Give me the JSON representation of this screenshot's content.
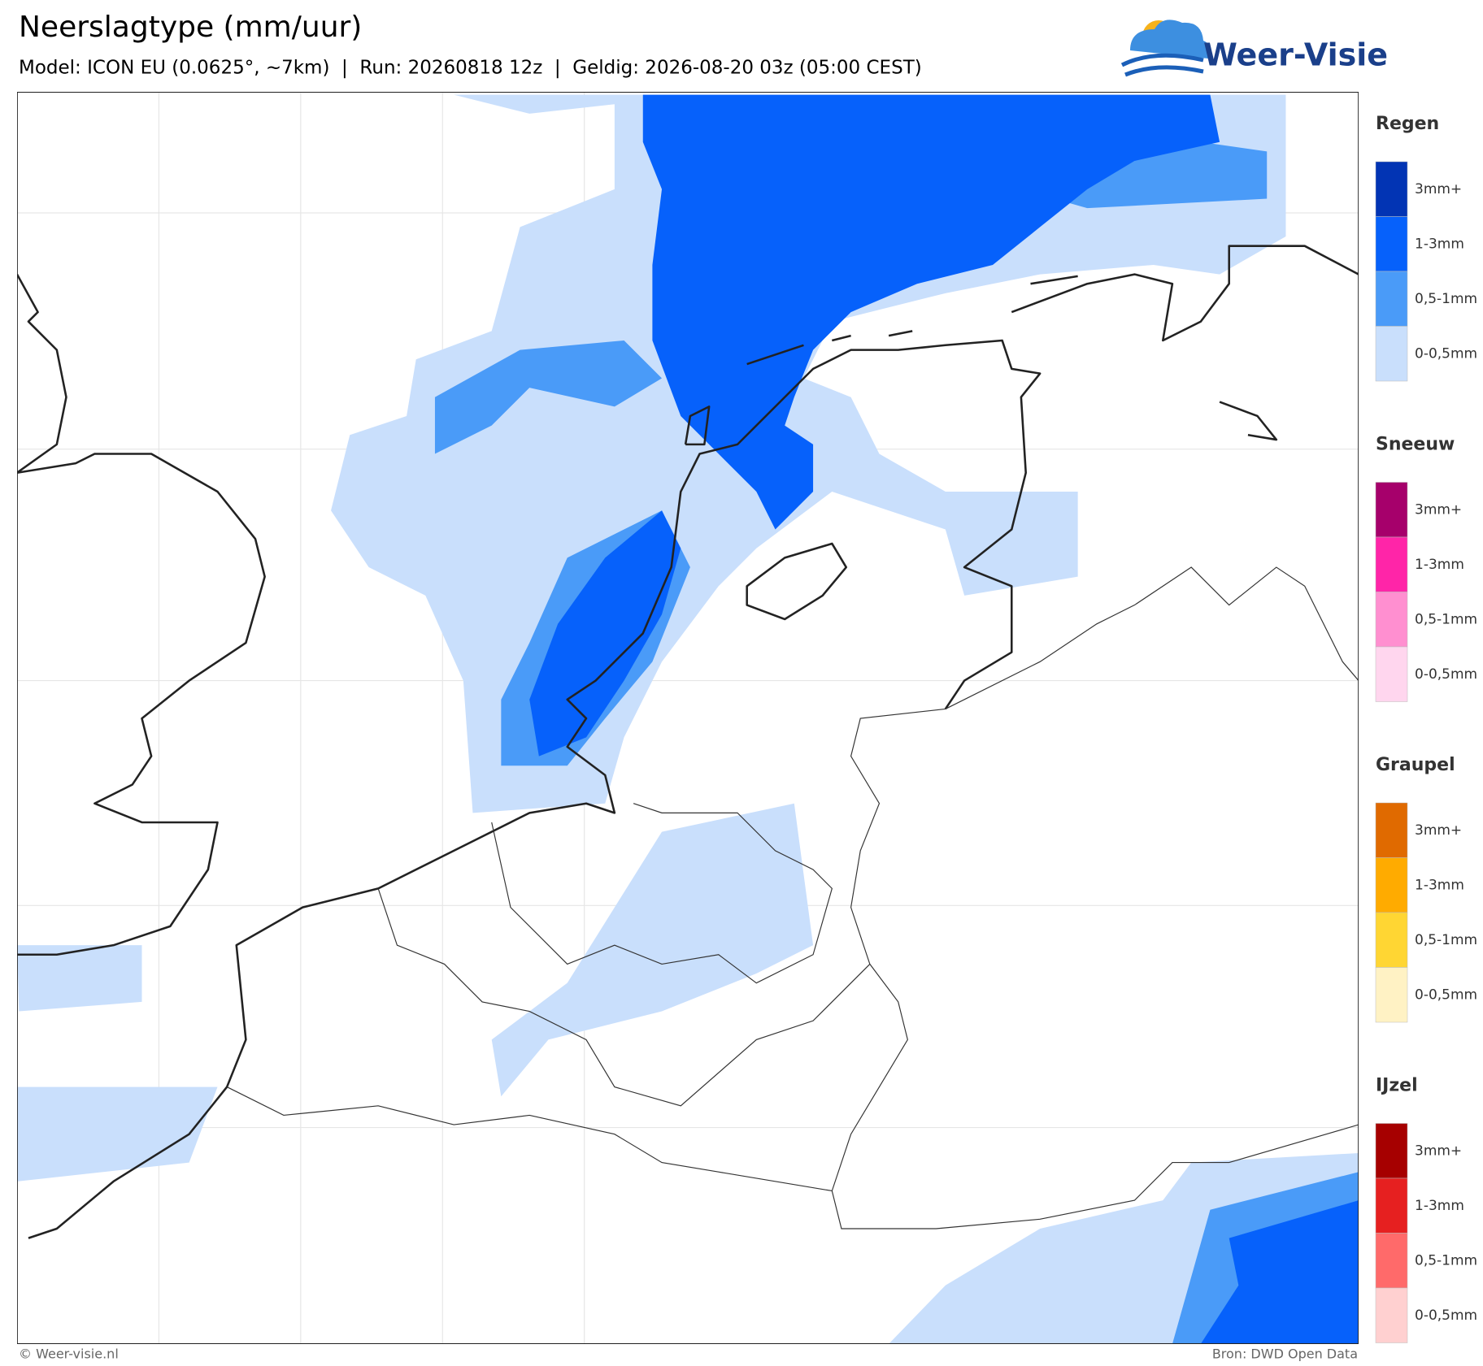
{
  "header": {
    "title": "Neerslagtype (mm/uur)",
    "subtitle": "Model: ICON EU (0.0625°, ~7km)  |  Run: 20260818 12z  |  Geldig: 2026-08-20 03z (05:00 CEST)",
    "logo": "Weer-Visie"
  },
  "legend": [
    {
      "title": "Regen",
      "items": [
        {
          "label": "3mm+",
          "color": "#0234b4"
        },
        {
          "label": "1-3mm",
          "color": "#0661fb"
        },
        {
          "label": "0,5-1mm",
          "color": "#4a9bf8"
        },
        {
          "label": "0-0,5mm",
          "color": "#c9dffc"
        }
      ]
    },
    {
      "title": "Sneeuw",
      "items": [
        {
          "label": "3mm+",
          "color": "#a6006b"
        },
        {
          "label": "1-3mm",
          "color": "#ff25a8"
        },
        {
          "label": "0,5-1mm",
          "color": "#ff8fd0"
        },
        {
          "label": "0-0,5mm",
          "color": "#ffd6ee"
        }
      ]
    },
    {
      "title": "Graupel",
      "items": [
        {
          "label": "3mm+",
          "color": "#e06a00"
        },
        {
          "label": "1-3mm",
          "color": "#ffab00"
        },
        {
          "label": "0,5-1mm",
          "color": "#ffd633"
        },
        {
          "label": "0-0,5mm",
          "color": "#fff2c4"
        }
      ]
    },
    {
      "title": "IJzel",
      "items": [
        {
          "label": "3mm+",
          "color": "#a60000"
        },
        {
          "label": "1-3mm",
          "color": "#e62020"
        },
        {
          "label": "0,5-1mm",
          "color": "#ff6a6a"
        },
        {
          "label": "0-0,5mm",
          "color": "#ffd0d0"
        }
      ]
    }
  ],
  "footer": {
    "left": "© Weer-visie.nl",
    "right": "Bron: DWD Open Data"
  }
}
